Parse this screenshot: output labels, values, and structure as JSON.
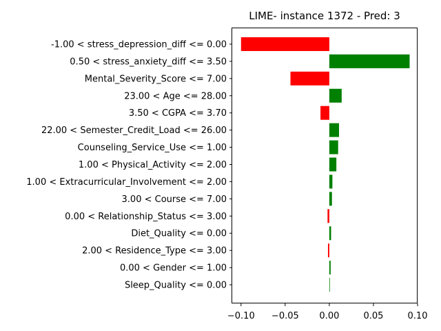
{
  "chart_data": {
    "type": "bar",
    "orientation": "horizontal",
    "title": "LIME- instance 1372 - Pred: 3",
    "xlabel": "",
    "ylabel": "",
    "xlim": [
      -0.11,
      0.1
    ],
    "xticks": [
      -0.1,
      -0.05,
      0.0,
      0.05,
      0.1
    ],
    "xtick_labels": [
      "−0.10",
      "−0.05",
      "0.00",
      "0.05",
      "0.10"
    ],
    "grid": false,
    "legend": "none",
    "positive_color": "#008000",
    "negative_color": "#ff0000",
    "categories": [
      "-1.00 < stress_depression_diff <= 0.00",
      "0.50 < stress_anxiety_diff <= 3.50",
      "Mental_Severity_Score <= 7.00",
      "23.00 < Age <= 28.00",
      "3.50 < CGPA <= 3.70",
      "22.00 < Semester_Credit_Load <= 26.00",
      "Counseling_Service_Use <= 1.00",
      "1.00 < Physical_Activity <= 2.00",
      "1.00 < Extracurricular_Involvement <= 2.00",
      "3.00 < Course <= 7.00",
      "0.00 < Relationship_Status <= 3.00",
      "Diet_Quality <= 0.00",
      "2.00 < Residence_Type <= 3.00",
      "0.00 < Gender <= 1.00",
      "Sleep_Quality <= 0.00"
    ],
    "values": [
      -0.1,
      0.091,
      -0.044,
      0.014,
      -0.01,
      0.011,
      0.01,
      0.008,
      0.0035,
      0.003,
      -0.002,
      0.002,
      -0.0015,
      0.0015,
      0.0005
    ]
  }
}
